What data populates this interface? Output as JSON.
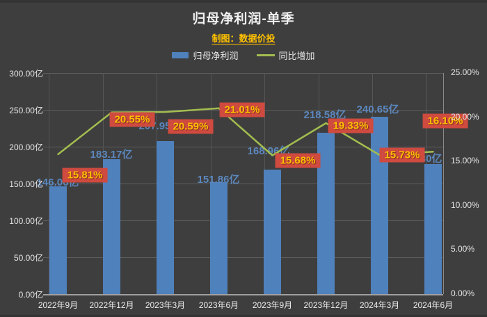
{
  "title": "归母净利润-单季",
  "subtitle": "制图：数据价投",
  "chart_data": {
    "type": "bar",
    "subtype": "combo bar + line, dual y-axis",
    "title": "归母净利润-单季",
    "subtitle": "制图：数据价投",
    "categories": [
      "2022年9月",
      "2022年12月",
      "2023年3月",
      "2023年6月",
      "2023年9月",
      "2023年12月",
      "2024年3月",
      "2024年6月"
    ],
    "series": [
      {
        "name": "归母净利润",
        "type": "bar",
        "axis": "left",
        "unit": "亿",
        "values": [
          146.06,
          183.17,
          207.95,
          151.86,
          168.96,
          218.58,
          240.65,
          176.3
        ],
        "data_labels": [
          "146.06亿",
          "183.17亿",
          "207.95亿",
          "151.86亿",
          "168.96亿",
          "218.58亿",
          "240.65亿",
          "176.30亿"
        ]
      },
      {
        "name": "同比增加",
        "type": "line",
        "axis": "right",
        "unit": "%",
        "values": [
          15.81,
          20.55,
          20.59,
          21.01,
          15.68,
          19.33,
          15.73,
          16.1
        ],
        "data_labels": [
          "15.81%",
          "20.55%",
          "20.59%",
          "21.01%",
          "15.68%",
          "19.33%",
          "15.73%",
          "16.10%"
        ]
      }
    ],
    "left_axis": {
      "min": 0,
      "max": 300,
      "tick_labels": [
        "300.00亿",
        "250.00亿",
        "200.00亿",
        "150.00亿",
        "100.00亿",
        "50.00亿",
        "0.00亿"
      ]
    },
    "right_axis": {
      "min": 0,
      "max": 25,
      "tick_labels": [
        "25.00%",
        "20.00%",
        "15.00%",
        "10.00%",
        "5.00%",
        "0.00%"
      ]
    },
    "grid": true,
    "legend_position": "top",
    "colors": {
      "background": "#3e3e3e",
      "bar": "#4f81bd",
      "line": "#a3bd4f",
      "bar_label_text": "#5b87bd",
      "pct_label_bg": "#cf4a3f",
      "pct_label_text": "#ffc000",
      "title_text": "#f2f2f2",
      "axis_text": "#e6e6e6"
    }
  }
}
